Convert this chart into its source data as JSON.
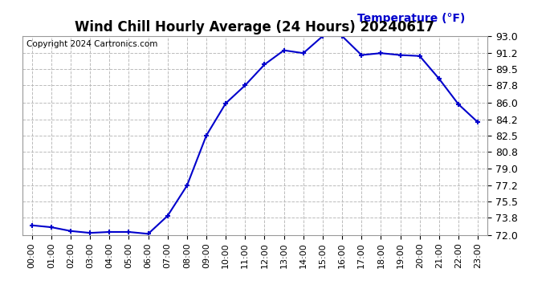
{
  "title": "Wind Chill Hourly Average (24 Hours) 20240617",
  "ylabel_text": "Temperature (°F)",
  "copyright": "Copyright 2024 Cartronics.com",
  "line_color": "#0000CC",
  "background_color": "#ffffff",
  "plot_bg_color": "#ffffff",
  "hours": [
    "00:00",
    "01:00",
    "02:00",
    "03:00",
    "04:00",
    "05:00",
    "06:00",
    "07:00",
    "08:00",
    "09:00",
    "10:00",
    "11:00",
    "12:00",
    "13:00",
    "14:00",
    "15:00",
    "16:00",
    "17:00",
    "18:00",
    "19:00",
    "20:00",
    "21:00",
    "22:00",
    "23:00"
  ],
  "values": [
    73.0,
    72.8,
    72.4,
    72.2,
    72.3,
    72.3,
    72.1,
    74.0,
    77.2,
    82.5,
    85.9,
    87.8,
    90.0,
    91.5,
    91.2,
    93.0,
    93.0,
    91.0,
    91.2,
    91.0,
    90.9,
    88.5,
    85.8,
    83.9
  ],
  "ylim_min": 72.0,
  "ylim_max": 93.0,
  "yticks": [
    72.0,
    73.8,
    75.5,
    77.2,
    79.0,
    80.8,
    82.5,
    84.2,
    86.0,
    87.8,
    89.5,
    91.2,
    93.0
  ],
  "grid_color": "#bbbbbb",
  "marker": "+",
  "marker_size": 5,
  "line_width": 1.5,
  "title_fontsize": 12,
  "ylabel_fontsize": 10,
  "ylabel_color": "#0000CC",
  "copyright_fontsize": 7.5,
  "tick_fontsize": 8,
  "ytick_fontsize": 9
}
